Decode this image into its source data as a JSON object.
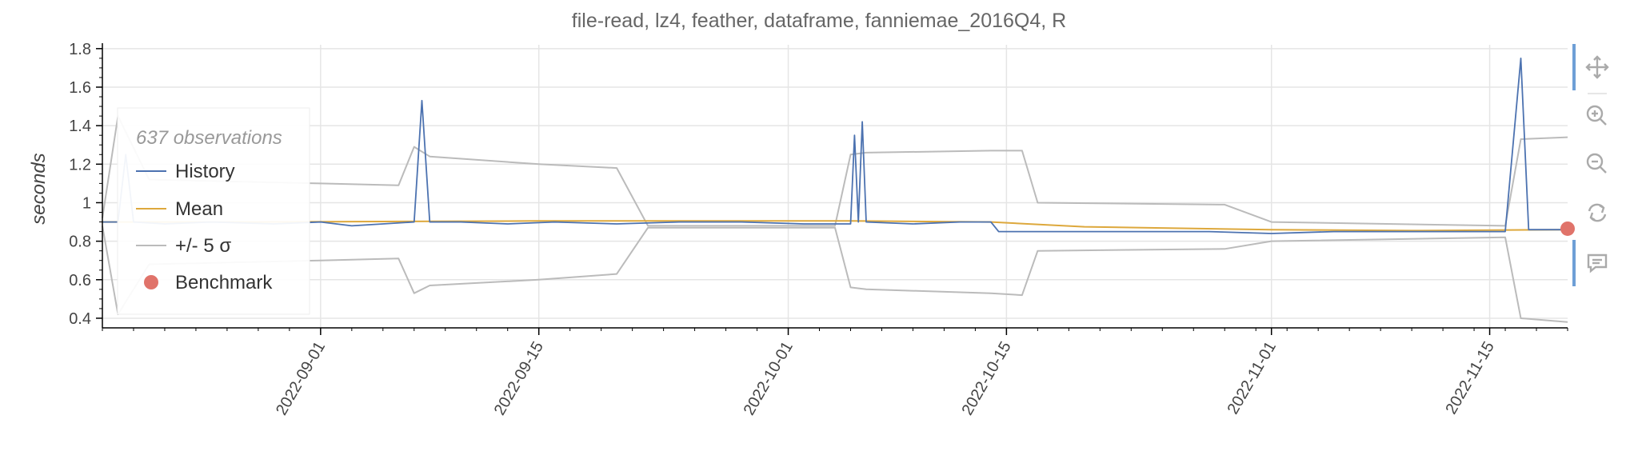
{
  "chart_data": {
    "type": "line",
    "title": "file-read, lz4, feather, dataframe, fanniemae_2016Q4, R",
    "ylabel": "seconds",
    "xlabel": "",
    "ylim": [
      0.35,
      1.82
    ],
    "xlim": [
      "2022-08-18",
      "2022-11-20"
    ],
    "y_ticks": [
      0.4,
      0.6,
      0.8,
      1,
      1.2,
      1.4,
      1.6,
      1.8
    ],
    "y_tick_labels": [
      "0.4",
      "0.6",
      "0.8",
      "1",
      "1.2",
      "1.4",
      "1.6",
      "1.8"
    ],
    "x_ticks": [
      "2022-09-01",
      "2022-09-15",
      "2022-10-01",
      "2022-10-15",
      "2022-11-01",
      "2022-11-15"
    ],
    "grid": true,
    "legend": {
      "title": "637 observations",
      "placement": "top-left"
    },
    "series": [
      {
        "name": "History",
        "color": "#4c72b0",
        "points": [
          [
            "2022-08-18",
            0.9
          ],
          [
            "2022-08-19",
            0.9
          ],
          [
            "2022-08-19",
            1.25
          ],
          [
            "2022-08-20",
            0.9
          ],
          [
            "2022-08-22",
            0.89
          ],
          [
            "2022-08-25",
            0.9
          ],
          [
            "2022-08-29",
            0.89
          ],
          [
            "2022-09-01",
            0.9
          ],
          [
            "2022-09-03",
            0.88
          ],
          [
            "2022-09-05",
            0.89
          ],
          [
            "2022-09-07",
            0.9
          ],
          [
            "2022-09-07",
            1.53
          ],
          [
            "2022-09-08",
            0.9
          ],
          [
            "2022-09-10",
            0.9
          ],
          [
            "2022-09-13",
            0.89
          ],
          [
            "2022-09-16",
            0.9
          ],
          [
            "2022-09-20",
            0.89
          ],
          [
            "2022-09-24",
            0.9
          ],
          [
            "2022-09-28",
            0.9
          ],
          [
            "2022-10-02",
            0.89
          ],
          [
            "2022-10-05",
            0.89
          ],
          [
            "2022-10-05",
            1.35
          ],
          [
            "2022-10-05",
            0.9
          ],
          [
            "2022-10-05",
            1.42
          ],
          [
            "2022-10-06",
            0.9
          ],
          [
            "2022-10-09",
            0.89
          ],
          [
            "2022-10-12",
            0.9
          ],
          [
            "2022-10-14",
            0.9
          ],
          [
            "2022-10-14",
            0.85
          ],
          [
            "2022-10-17",
            0.85
          ],
          [
            "2022-10-20",
            0.85
          ],
          [
            "2022-10-24",
            0.85
          ],
          [
            "2022-10-28",
            0.85
          ],
          [
            "2022-11-01",
            0.84
          ],
          [
            "2022-11-05",
            0.85
          ],
          [
            "2022-11-09",
            0.85
          ],
          [
            "2022-11-13",
            0.85
          ],
          [
            "2022-11-16",
            0.85
          ],
          [
            "2022-11-17",
            1.75
          ],
          [
            "2022-11-17",
            0.86
          ],
          [
            "2022-11-20",
            0.86
          ]
        ]
      },
      {
        "name": "Mean",
        "color": "#dda83c",
        "points": [
          [
            "2022-08-18",
            0.9
          ],
          [
            "2022-08-28",
            0.9
          ],
          [
            "2022-09-15",
            0.905
          ],
          [
            "2022-10-05",
            0.905
          ],
          [
            "2022-10-14",
            0.9
          ],
          [
            "2022-10-20",
            0.875
          ],
          [
            "2022-11-01",
            0.86
          ],
          [
            "2022-11-10",
            0.855
          ],
          [
            "2022-11-20",
            0.86
          ]
        ]
      },
      {
        "name": "+/- 5 σ",
        "color": "#bbbbbb",
        "points_upper": [
          [
            "2022-08-18",
            0.92
          ],
          [
            "2022-08-19",
            1.45
          ],
          [
            "2022-08-21",
            1.12
          ],
          [
            "2022-09-01",
            1.1
          ],
          [
            "2022-09-06",
            1.09
          ],
          [
            "2022-09-07",
            1.29
          ],
          [
            "2022-09-08",
            1.24
          ],
          [
            "2022-09-15",
            1.2
          ],
          [
            "2022-09-20",
            1.18
          ],
          [
            "2022-09-22",
            0.88
          ],
          [
            "2022-10-04",
            0.88
          ],
          [
            "2022-10-05",
            1.25
          ],
          [
            "2022-10-06",
            1.26
          ],
          [
            "2022-10-14",
            1.27
          ],
          [
            "2022-10-16",
            1.27
          ],
          [
            "2022-10-17",
            1.0
          ],
          [
            "2022-10-29",
            0.99
          ],
          [
            "2022-11-01",
            0.9
          ],
          [
            "2022-11-16",
            0.88
          ],
          [
            "2022-11-17",
            1.33
          ],
          [
            "2022-11-20",
            1.34
          ]
        ],
        "points_lower": [
          [
            "2022-08-18",
            0.88
          ],
          [
            "2022-08-19",
            0.42
          ],
          [
            "2022-08-21",
            0.68
          ],
          [
            "2022-09-01",
            0.7
          ],
          [
            "2022-09-06",
            0.71
          ],
          [
            "2022-09-07",
            0.53
          ],
          [
            "2022-09-08",
            0.57
          ],
          [
            "2022-09-15",
            0.6
          ],
          [
            "2022-09-20",
            0.63
          ],
          [
            "2022-09-22",
            0.87
          ],
          [
            "2022-10-04",
            0.87
          ],
          [
            "2022-10-05",
            0.56
          ],
          [
            "2022-10-06",
            0.55
          ],
          [
            "2022-10-14",
            0.53
          ],
          [
            "2022-10-16",
            0.52
          ],
          [
            "2022-10-17",
            0.75
          ],
          [
            "2022-10-29",
            0.76
          ],
          [
            "2022-11-01",
            0.8
          ],
          [
            "2022-11-16",
            0.82
          ],
          [
            "2022-11-17",
            0.4
          ],
          [
            "2022-11-20",
            0.38
          ]
        ]
      },
      {
        "name": "Benchmark",
        "color": "#e0736a",
        "points": [
          [
            "2022-11-20",
            0.865
          ]
        ]
      }
    ]
  },
  "toolbar": {
    "tools": [
      {
        "name": "pan-tool",
        "icon": "move-icon"
      },
      {
        "name": "zoom-in-tool",
        "icon": "zoom-in-icon"
      },
      {
        "name": "zoom-out-tool",
        "icon": "zoom-out-icon"
      },
      {
        "name": "reset-tool",
        "icon": "reset-icon"
      },
      {
        "name": "hover-tool",
        "icon": "comment-icon"
      }
    ],
    "accent": "#6e9fd6"
  }
}
